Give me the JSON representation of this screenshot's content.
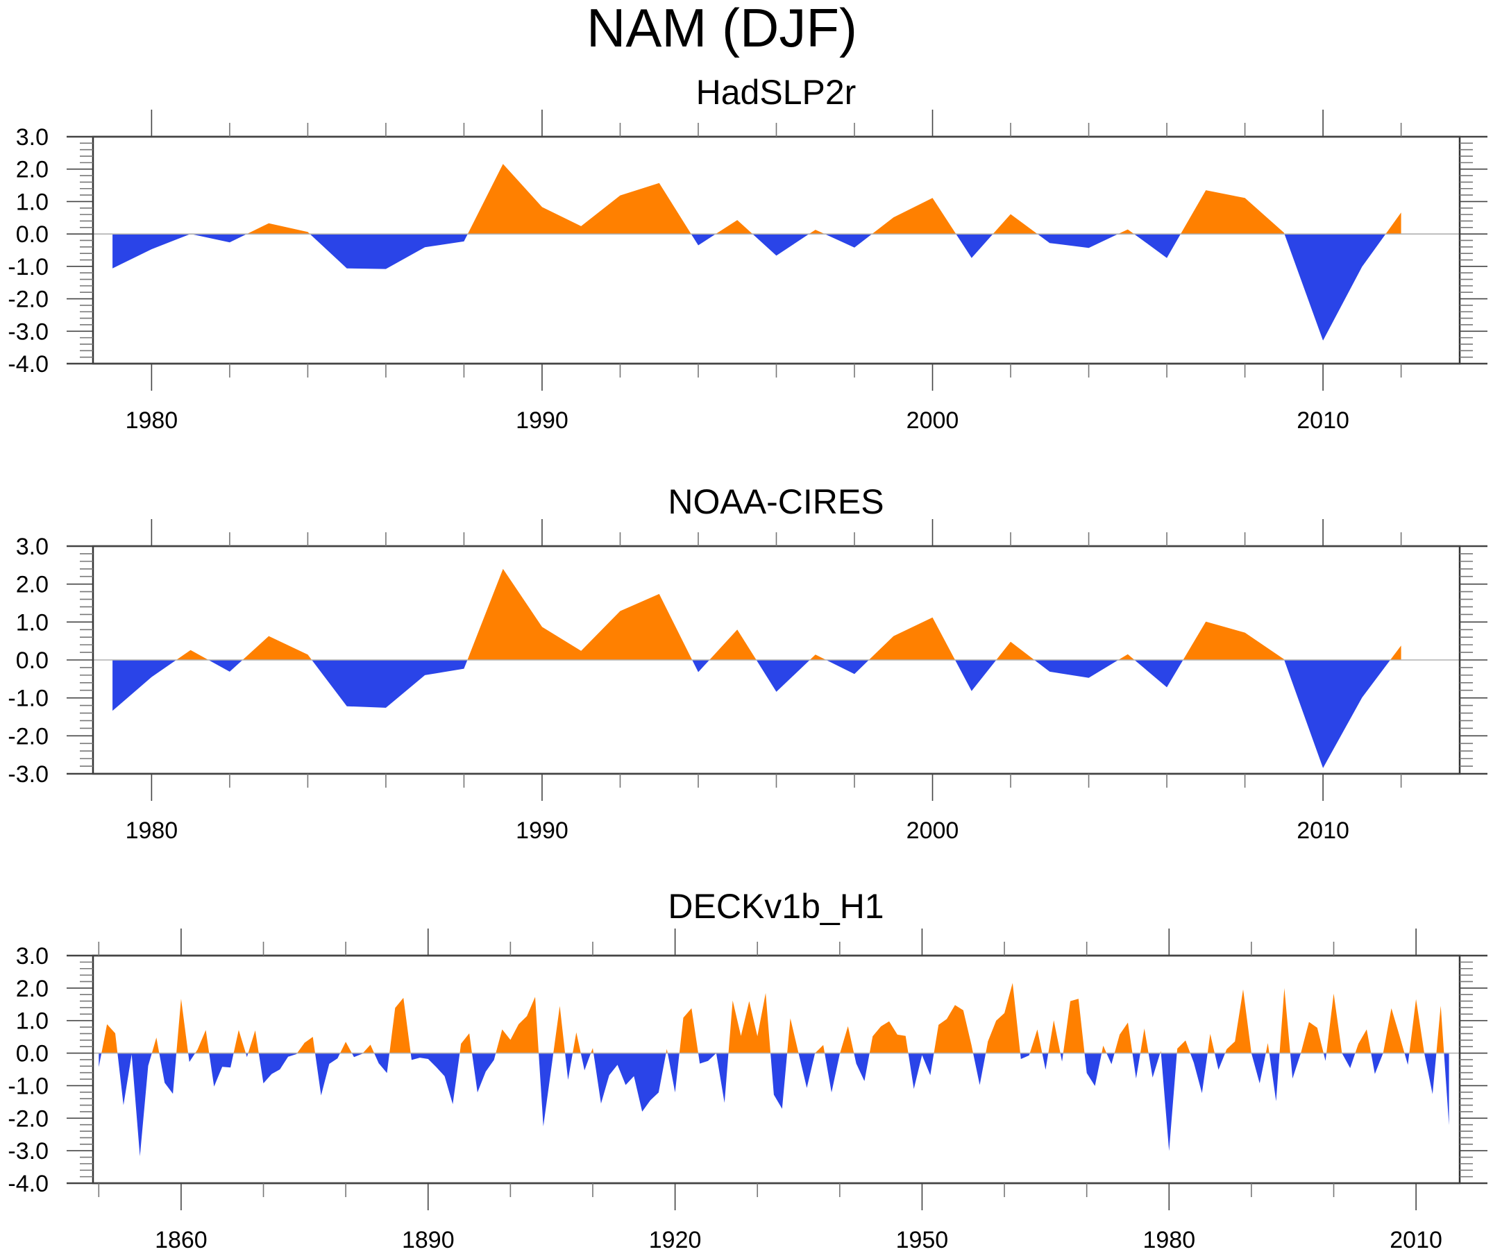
{
  "colors": {
    "positive": "#FF8000",
    "negative": "#2A44E8",
    "zero_line": "#B0B0B0",
    "axis": "#333333"
  },
  "chart_data": [
    {
      "type": "area",
      "title": "NAM (DJF)",
      "subtitle": "HadSLP2r",
      "xlabel": "",
      "ylabel": "",
      "xlim": [
        1978.5,
        2013.5
      ],
      "ylim": [
        -4.0,
        3.0
      ],
      "x_major_ticks": [
        1980,
        1990,
        2000,
        2010
      ],
      "x_tick_labels": [
        "1980",
        "1990",
        "2000",
        "2010"
      ],
      "x_minor_step": 2,
      "y_ticks": [
        3.0,
        2.0,
        1.0,
        0.0,
        -1.0,
        -2.0,
        -3.0,
        -4.0
      ],
      "y_tick_labels": [
        "3.0",
        "2.0",
        "1.0",
        "0.0",
        "-1.0",
        "-2.0",
        "-3.0",
        "-4.0"
      ],
      "y_minor_step": 0.2,
      "grid": false,
      "legend": "none",
      "fill_above_zero": "orange",
      "fill_below_zero": "blue",
      "x": [
        1979,
        1980,
        1981,
        1982,
        1983,
        1984,
        1985,
        1986,
        1987,
        1988,
        1989,
        1990,
        1991,
        1992,
        1993,
        1994,
        1995,
        1996,
        1997,
        1998,
        1999,
        2000,
        2001,
        2002,
        2003,
        2004,
        2005,
        2006,
        2007,
        2008,
        2009,
        2010,
        2011,
        2012
      ],
      "values": [
        -1.06,
        -0.47,
        0.0,
        -0.26,
        0.33,
        0.06,
        -1.06,
        -1.08,
        -0.41,
        -0.23,
        2.16,
        0.83,
        0.24,
        1.19,
        1.57,
        -0.35,
        0.43,
        -0.67,
        0.13,
        -0.42,
        0.51,
        1.11,
        -0.74,
        0.61,
        -0.28,
        -0.43,
        0.14,
        -0.74,
        1.35,
        1.11,
        0.04,
        -3.29,
        -1.01,
        0.66
      ]
    },
    {
      "type": "area",
      "subtitle": "NOAA-CIRES",
      "xlabel": "",
      "ylabel": "",
      "xlim": [
        1978.5,
        2013.5
      ],
      "ylim": [
        -3.0,
        3.0
      ],
      "x_major_ticks": [
        1980,
        1990,
        2000,
        2010
      ],
      "x_tick_labels": [
        "1980",
        "1990",
        "2000",
        "2010"
      ],
      "x_minor_step": 2,
      "y_ticks": [
        3.0,
        2.0,
        1.0,
        0.0,
        -1.0,
        -2.0,
        -3.0
      ],
      "y_tick_labels": [
        "3.0",
        "2.0",
        "1.0",
        "0.0",
        "-1.0",
        "-2.0",
        "-3.0"
      ],
      "y_minor_step": 0.2,
      "grid": false,
      "legend": "none",
      "fill_above_zero": "orange",
      "fill_below_zero": "blue",
      "x": [
        1979,
        1980,
        1981,
        1982,
        1983,
        1984,
        1985,
        1986,
        1987,
        1988,
        1989,
        1990,
        1991,
        1992,
        1993,
        1994,
        1995,
        1996,
        1997,
        1998,
        1999,
        2000,
        2001,
        2002,
        2003,
        2004,
        2005,
        2006,
        2007,
        2008,
        2009,
        2010,
        2011,
        2012
      ],
      "values": [
        -1.34,
        -0.45,
        0.26,
        -0.31,
        0.63,
        0.14,
        -1.22,
        -1.26,
        -0.4,
        -0.23,
        2.4,
        0.87,
        0.24,
        1.29,
        1.74,
        -0.32,
        0.8,
        -0.84,
        0.14,
        -0.37,
        0.63,
        1.12,
        -0.82,
        0.48,
        -0.31,
        -0.47,
        0.15,
        -0.72,
        1.01,
        0.72,
        0.02,
        -2.85,
        -0.99,
        0.38
      ]
    },
    {
      "type": "area",
      "subtitle": "DECKv1b_H1",
      "xlabel": "",
      "ylabel": "",
      "xlim": [
        1849.3,
        2015.3
      ],
      "ylim": [
        -4.0,
        3.0
      ],
      "x_major_ticks": [
        1860,
        1890,
        1920,
        1950,
        1980,
        2010
      ],
      "x_tick_labels": [
        "1860",
        "1890",
        "1920",
        "1950",
        "1980",
        "2010"
      ],
      "x_minor_step": 10,
      "y_ticks": [
        3.0,
        2.0,
        1.0,
        0.0,
        -1.0,
        -2.0,
        -3.0,
        -4.0
      ],
      "y_tick_labels": [
        "3.0",
        "2.0",
        "1.0",
        "0.0",
        "-1.0",
        "-2.0",
        "-3.0",
        "-4.0"
      ],
      "y_minor_step": 0.2,
      "grid": false,
      "legend": "none",
      "fill_above_zero": "orange",
      "fill_below_zero": "blue",
      "x_start": 1850,
      "values": [
        -0.43,
        0.89,
        0.61,
        -1.6,
        -0.04,
        -3.17,
        -0.39,
        0.48,
        -0.91,
        -1.25,
        1.67,
        -0.27,
        0.11,
        0.71,
        -1.03,
        -0.42,
        -0.44,
        0.71,
        -0.12,
        0.7,
        -0.93,
        -0.64,
        -0.5,
        -0.11,
        -0.03,
        0.32,
        0.5,
        -1.3,
        -0.33,
        -0.16,
        0.35,
        -0.12,
        -0.02,
        0.26,
        -0.31,
        -0.61,
        1.39,
        1.7,
        -0.21,
        -0.14,
        -0.18,
        -0.43,
        -0.71,
        -1.57,
        0.29,
        0.61,
        -1.21,
        -0.57,
        -0.21,
        0.73,
        0.41,
        0.89,
        1.14,
        1.73,
        -2.25,
        -0.4,
        1.45,
        -0.82,
        0.64,
        -0.53,
        0.16,
        -1.55,
        -0.68,
        -0.36,
        -0.98,
        -0.71,
        -1.8,
        -1.45,
        -1.21,
        0.13,
        -1.21,
        1.09,
        1.38,
        -0.32,
        -0.24,
        0.0,
        -1.53,
        1.62,
        0.53,
        1.6,
        0.52,
        1.85,
        -1.28,
        -1.71,
        1.07,
        0.0,
        -1.07,
        0.0,
        0.25,
        -1.21,
        -0.03,
        0.83,
        -0.32,
        -0.86,
        0.52,
        0.82,
        0.98,
        0.57,
        0.53,
        -1.1,
        -0.06,
        -0.68,
        0.87,
        1.05,
        1.48,
        1.32,
        0.25,
        -0.98,
        0.36,
        1.0,
        1.23,
        2.16,
        -0.18,
        -0.07,
        0.73,
        -0.51,
        1.01,
        -0.26,
        1.6,
        1.67,
        -0.61,
        -1.01,
        0.23,
        -0.34,
        0.57,
        0.94,
        -0.78,
        0.76,
        -0.75,
        0.07,
        -3.01,
        0.14,
        0.39,
        -0.29,
        -1.23,
        0.59,
        -0.51,
        0.12,
        0.36,
        1.96,
        0.0,
        -0.93,
        0.31,
        -1.48,
        2.0,
        -0.78,
        0.0,
        0.96,
        0.78,
        -0.24,
        1.83,
        0.0,
        -0.46,
        0.29,
        0.73,
        -0.64,
        0.0,
        1.38,
        0.53,
        -0.36,
        1.66,
        0.0,
        -1.26,
        1.46,
        -2.21
      ]
    }
  ]
}
